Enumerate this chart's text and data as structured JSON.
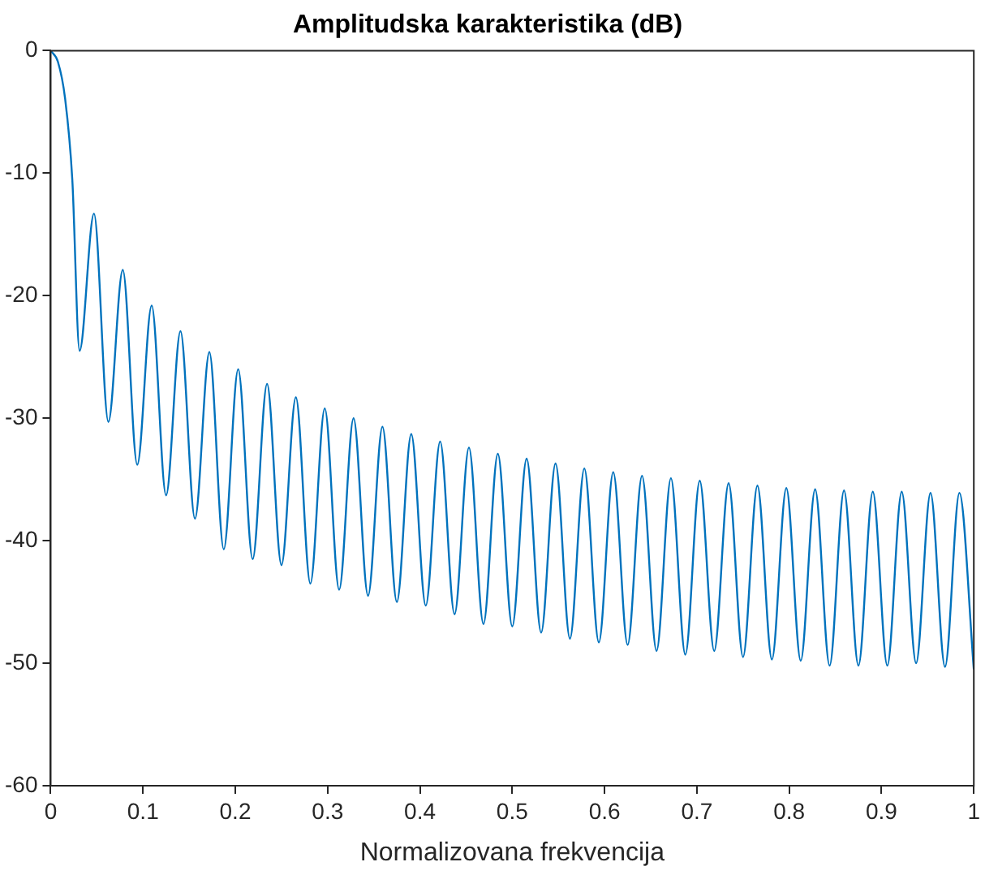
{
  "chart_data": {
    "type": "line",
    "title": "Amplitudska karakteristika (dB)",
    "xlabel": "Normalizovana frekvencija",
    "xlim": [
      0,
      1
    ],
    "xticks": [
      0,
      0.1,
      0.2,
      0.3,
      0.4,
      0.5,
      0.6,
      0.7,
      0.8,
      0.9,
      1
    ],
    "ylim": [
      -60,
      0
    ],
    "yticks": [
      -60,
      -50,
      -40,
      -30,
      -20,
      -10,
      0
    ],
    "grid": false,
    "legend": false,
    "marker": "none",
    "line_style": "solid",
    "series": [
      {
        "color": "#0072bd",
        "x": [
          0,
          0.0078,
          0.0156,
          0.0234,
          0.0313,
          0.0469,
          0.0625,
          0.0781,
          0.0938,
          0.1094,
          0.125,
          0.1406,
          0.1563,
          0.1719,
          0.1875,
          0.2031,
          0.2188,
          0.2344,
          0.25,
          0.2656,
          0.2813,
          0.2969,
          0.3125,
          0.3281,
          0.3438,
          0.3594,
          0.375,
          0.3906,
          0.4063,
          0.4219,
          0.4375,
          0.4531,
          0.4688,
          0.4844,
          0.5,
          0.5156,
          0.5313,
          0.5469,
          0.5625,
          0.5781,
          0.5938,
          0.6094,
          0.625,
          0.6406,
          0.6563,
          0.6719,
          0.6875,
          0.7031,
          0.7188,
          0.7344,
          0.75,
          0.7656,
          0.7813,
          0.7969,
          0.8125,
          0.8281,
          0.8438,
          0.8594,
          0.875,
          0.8906,
          0.9063,
          0.9219,
          0.9375,
          0.9531,
          0.9688,
          0.9844,
          1
        ],
        "values": [
          0,
          -0.9,
          -3.9,
          -10.5,
          -24.5,
          -13.3,
          -30.3,
          -17.9,
          -33.8,
          -20.8,
          -36.3,
          -22.9,
          -38.2,
          -24.6,
          -40.7,
          -26,
          -41.5,
          -27.2,
          -42,
          -28.3,
          -43.5,
          -29.2,
          -44,
          -30,
          -44.5,
          -30.7,
          -45,
          -31.3,
          -45.3,
          -31.9,
          -46,
          -32.4,
          -46.8,
          -32.9,
          -47,
          -33.3,
          -47.5,
          -33.7,
          -48,
          -34.1,
          -48.3,
          -34.4,
          -48.5,
          -34.7,
          -49,
          -34.9,
          -49.3,
          -35.1,
          -49,
          -35.3,
          -49.5,
          -35.5,
          -49.7,
          -35.7,
          -49.8,
          -35.8,
          -50.2,
          -35.9,
          -50.2,
          -36,
          -50.2,
          -36,
          -50,
          -36.1,
          -50.3,
          -36.1,
          -50.5
        ]
      }
    ]
  }
}
